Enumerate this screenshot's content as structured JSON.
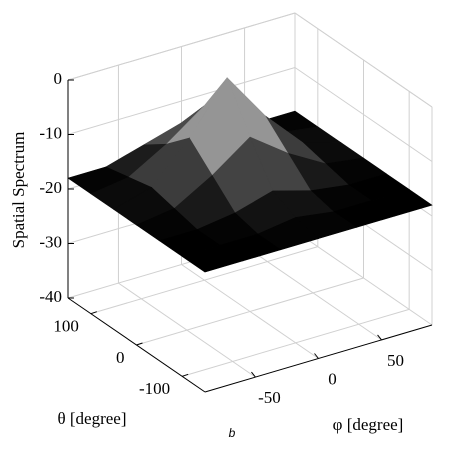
{
  "chart_data": {
    "type": "surface",
    "zlabel": "Spatial Spectrum",
    "xlabel": "θ [degree]",
    "ylabel": "φ [degree]",
    "caption": "b",
    "x": [
      -150,
      -100,
      -50,
      0,
      50,
      100,
      150
    ],
    "y": [
      -90,
      -60,
      -30,
      0,
      30,
      60,
      90
    ],
    "z": [
      [
        -18,
        -18,
        -18,
        -18,
        -18,
        -18,
        -18
      ],
      [
        -18,
        -18,
        -18,
        -17,
        -18,
        -18,
        -18
      ],
      [
        -18,
        -18,
        -17,
        -15,
        -17,
        -18,
        -18
      ],
      [
        -18,
        -17,
        -13,
        -8,
        -13,
        -17,
        -18
      ],
      [
        -18,
        -16,
        -9,
        0,
        -9,
        -16,
        -18
      ],
      [
        -18,
        -17,
        -13,
        -8,
        -13,
        -17,
        -18
      ],
      [
        -18,
        -18,
        -16,
        -14,
        -16,
        -18,
        -18
      ]
    ],
    "xlim": [
      -150,
      150
    ],
    "ylim": [
      -90,
      90
    ],
    "zlim": [
      -40,
      0
    ],
    "xticks": [
      -100,
      0,
      100
    ],
    "yticks": [
      -50,
      0,
      50
    ],
    "zticks": [
      -40,
      -30,
      -20,
      -10,
      0
    ],
    "grid": true
  }
}
